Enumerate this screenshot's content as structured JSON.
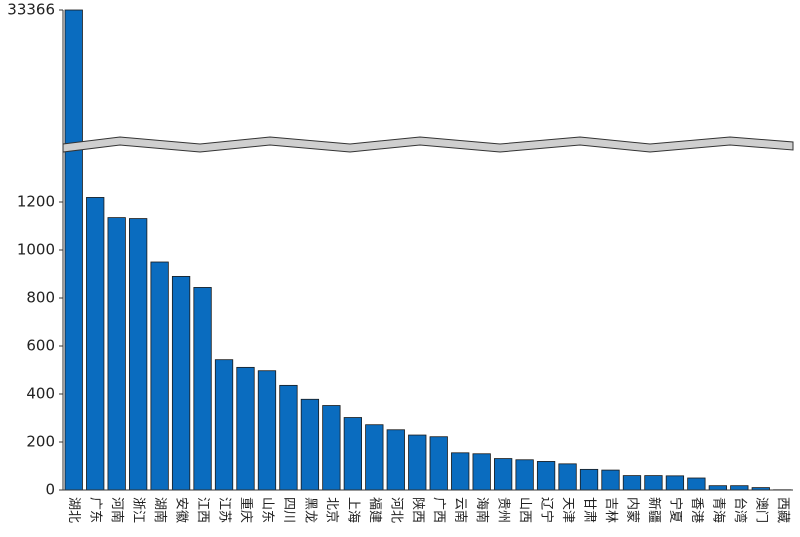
{
  "chart_data": {
    "type": "bar",
    "categories": [
      "湖北",
      "广东",
      "河南",
      "浙江",
      "湖南",
      "安徽",
      "江西",
      "江苏",
      "重庆",
      "山东",
      "四川",
      "黑龙",
      "北京",
      "上海",
      "福建",
      "河北",
      "陕西",
      "广西",
      "云南",
      "海南",
      "贵州",
      "山西",
      "辽宁",
      "天津",
      "甘肃",
      "吉林",
      "内蒙",
      "新疆",
      "宁夏",
      "香港",
      "青海",
      "台湾",
      "澳门",
      "西藏"
    ],
    "values": [
      33366,
      1219,
      1135,
      1131,
      950,
      890,
      844,
      543,
      511,
      497,
      436,
      378,
      352,
      302,
      272,
      251,
      229,
      222,
      155,
      151,
      131,
      126,
      119,
      109,
      86,
      83,
      60,
      60,
      59,
      50,
      18,
      18,
      10,
      1
    ],
    "color": "#0a6cbf",
    "ylim": [
      0,
      33366
    ],
    "ybreak": 1400,
    "yticks": [
      0,
      200,
      400,
      600,
      800,
      1000,
      1200,
      33366
    ]
  }
}
